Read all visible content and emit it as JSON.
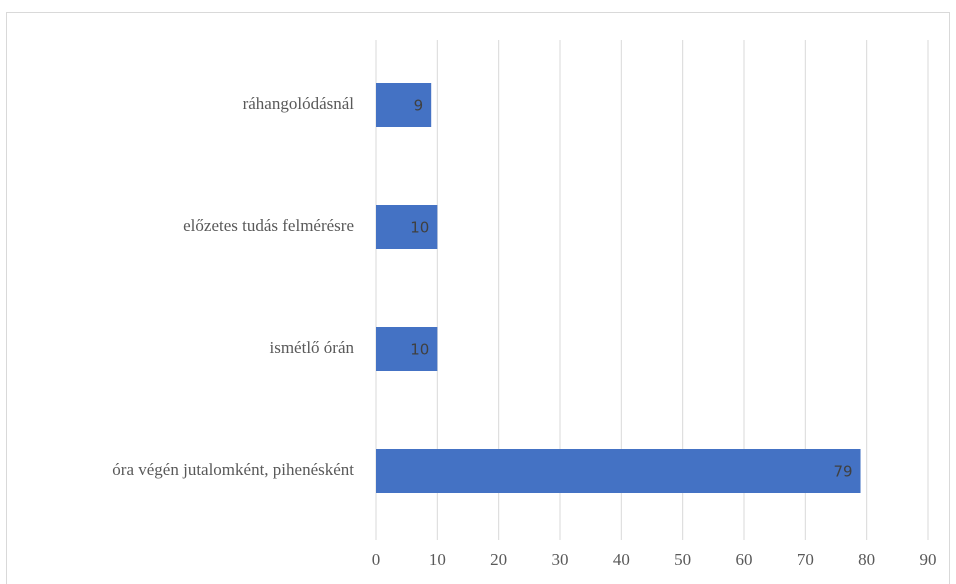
{
  "chart_data": {
    "type": "bar",
    "orientation": "horizontal",
    "categories": [
      "ráhangolódásnál",
      "előzetes tudás felmérésre",
      "ismétlő órán",
      "óra végén jutalomként, pihenésként"
    ],
    "values": [
      9,
      10,
      10,
      79
    ],
    "color": "#4472c4",
    "xlim": [
      0,
      90
    ],
    "xticks": [
      0,
      10,
      20,
      30,
      40,
      50,
      60,
      70,
      80,
      90
    ],
    "grid": true
  }
}
